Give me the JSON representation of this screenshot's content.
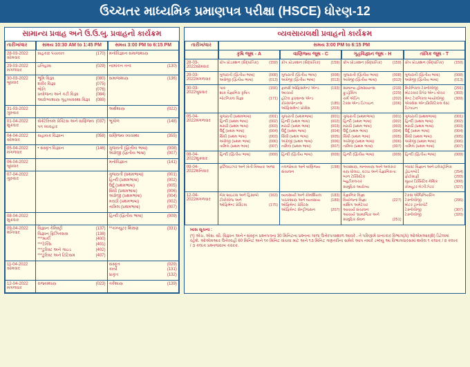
{
  "header": "ઉચ્ચતર માધ્યમિક પ્રમાણપત્ર પરીક્ષા (HSCE) ધોરણ-12",
  "left": {
    "title": "સામાન્ય પ્રવાહ અને ઉ.ઉ.બુ. પ્રવાહનો કાર્યક્રમ",
    "time1": "સમય 10:30 AM to 1:45 PM",
    "time2": "સમય 3:00 PM to 6:15 PM",
    "dateLabel": "તારીખ/વાર",
    "rows": [
      {
        "date": "28-03-2022",
        "day": "સોમવાર",
        "c1": [
          {
            "s": "સહકાર પંચાયત",
            "c": "(170)"
          }
        ],
        "c2": [
          {
            "s": "મનોવિજ્ઞાન સમાજશાસ્ત્ર",
            "c": ""
          }
        ]
      },
      {
        "date": "29-03-2022",
        "day": "મંગળવાર",
        "c1": [
          {
            "s": "ઇતિહાસ",
            "c": "(029)"
          }
        ],
        "c2": [
          {
            "s": "નામાંકન તત્વ",
            "c": "(130)"
          }
        ]
      },
      {
        "date": "30-03-2022",
        "day": "બુધવાર",
        "c1": [
          {
            "s": "ભૂમિ વિજ્ઞા",
            "c": "(080)"
          },
          {
            "s": "શરીર વિજ્ઞા",
            "c": "(075)"
          },
          {
            "s": "ભૌતિ",
            "c": "(076)"
          },
          {
            "s": "પ્રયોજના અને કટી વિજ્ઞા",
            "c": "(084)"
          },
          {
            "s": "આરોગ્યશાસ્ત્ર ગૃહવ્યવસ્થા વિજ્ઞા",
            "c": "(089)"
          }
        ],
        "c2": [
          {
            "s": "સમાજશાસ્ત્ર",
            "c": "(136)"
          }
        ]
      },
      {
        "date": "31-03-2022",
        "day": "ગુરુવાર",
        "c1": [],
        "c2": [
          {
            "s": "અર્થશાસ્ત્ર",
            "c": "(022)"
          }
        ]
      },
      {
        "date": "01-04-2022",
        "day": "શુક્રવાર",
        "c1": [
          {
            "s": "સેક્રેટેરિયલ પ્રેક્ટિસ અને વાણિજ્ય પત્ર વ્યવહાર",
            "c": "(037)"
          }
        ],
        "c2": [
          {
            "s": "ભૂગોળ",
            "c": "(148)"
          }
        ]
      },
      {
        "date": "04-04-2022",
        "day": "સોમવાર",
        "c1": [
          {
            "s": "સહાયક વિજ્ઞાન",
            "c": "(058)"
          }
        ],
        "c2": [
          {
            "s": "વાણિજ્ય વ્યવસ્થા",
            "c": "(355)"
          }
        ]
      },
      {
        "date": "05-04-2022",
        "day": "મંગળવાર",
        "c1": [
          {
            "s": "• સંસ્કૃત વિજ્ઞાન",
            "c": "(146)"
          }
        ],
        "c2": [
          {
            "s": "ગુજરાતી (દ્વિતીય ભાષા)",
            "c": "(008)"
          },
          {
            "s": "અંગ્રેજી (દ્વિતીય ભાષા)",
            "c": "(007)"
          }
        ]
      },
      {
        "date": "06-04-2022",
        "day": "બુધવાર",
        "c1": [],
        "c2": [
          {
            "s": "મનોવિજ્ઞાન",
            "c": "(141)"
          }
        ]
      },
      {
        "date": "07-04-2022",
        "day": "ગુરુવાર",
        "c1": [],
        "c2": [
          {
            "s": "ગુજરાતી (પ્રથમભાષા)",
            "c": "(001)"
          },
          {
            "s": "હિન્દી (પ્રથમભાષા)",
            "c": "(002)"
          },
          {
            "s": "ઉર્દૂ (પ્રથમભાષા)",
            "c": "(005)"
          },
          {
            "s": "સિંધી (પ્રથમભાષા)",
            "c": "(006)"
          },
          {
            "s": "અંગ્રેજી (પ્રથમભાષા)",
            "c": "(004)"
          },
          {
            "s": "મરાઠી (પ્રથમભાષા)",
            "c": "(002)"
          },
          {
            "s": "તામિલ (પ્રથમભાષા)",
            "c": "(007)"
          }
        ]
      },
      {
        "date": "08-04-2022",
        "day": "શુક્રવાર",
        "c1": [],
        "c2": [
          {
            "s": "હિન્દી (દ્વિતીય ભાષા)",
            "c": "(009)"
          }
        ]
      },
      {
        "date": "09-04-2022",
        "day": "શનિવાર",
        "c1": [
          {
            "s": "વિજ્ઞાન કેમિસ્ટ્રી",
            "c": "(137)"
          },
          {
            "s": "વિજ્ઞાન ફિઝિક્સસ",
            "c": "(138)"
          },
          {
            "s": "***માર્કી",
            "c": "(400)"
          },
          {
            "s": "***ટેક્સિ",
            "c": "(401)"
          },
          {
            "s": "***ટુરિસ્ટ અને ગાઇડ",
            "c": "(402)"
          },
          {
            "s": "***ટુરિસ્ટ અને ટિટિસમ",
            "c": "(407)"
          }
        ],
        "c2": [
          {
            "s": "**કમ્પ્યુટર શિક્ષણ",
            "c": "(331)"
          }
        ]
      },
      {
        "date": "11-04-2022",
        "day": "સોમવાર",
        "c1": [],
        "c2": [
          {
            "s": "સંસ્કૃત",
            "c": "(029)"
          },
          {
            "s": "કાર્યો",
            "c": "(131)"
          },
          {
            "s": "પ્રાકૃત",
            "c": "(132)"
          }
        ]
      },
      {
        "date": "12-04-2022",
        "day": "મંગળવાર",
        "c1": [
          {
            "s": "રાજ્યશાસ્ત્ર",
            "c": "(023)"
          }
        ],
        "c2": [
          {
            "s": "તર્કશાસ્ત્ર",
            "c": "(139)"
          }
        ]
      }
    ]
  },
  "right": {
    "title": "વ્યવસાયલક્ષી પ્રવાહનો કાર્યક્રમ",
    "time": "સમય 3:00 PM to 6:15 PM",
    "dateLabel": "તારીખ/વાર",
    "groups": [
      "કૃષિ જૂથ - A",
      "વાણિજ્ય જૂથ - C",
      "ગૃહવિજ્ઞાન જૂથ - H",
      "તાંત્રિક જૂથ - T"
    ],
    "rows": [
      {
        "date": "28-03-2022",
        "day": "સોમવાર",
        "cols": [
          [
            {
              "s": "ક્રોપ પ્રોડક્શન (સૈદ્ધાંતિક)",
              "c": "(159)"
            }
          ],
          [
            {
              "s": "ક્રોપ પ્રોડક્શન (સૈદ્ધાંતિક)",
              "c": "(159)"
            }
          ],
          [
            {
              "s": "ક્રોપ પ્રોડક્શન (સૈદ્ધાંતિક)",
              "c": "(159)"
            }
          ],
          [
            {
              "s": "ક્રોપ પ્રોડક્શન (સૈદ્ધાંતિક)",
              "c": "(159)"
            }
          ]
        ]
      },
      {
        "date": "29-03-2022",
        "day": "મંગળવાર",
        "cols": [
          [
            {
              "s": "ગુજરાતી (દ્વિતીય ભાષા)",
              "c": "(008)"
            },
            {
              "s": "અંગ્રેજી (દ્વિતીય ભાષા)",
              "c": "(013)"
            }
          ],
          [
            {
              "s": "ગુજરાતી (દ્વિતીય ભાષા)",
              "c": "(008)"
            },
            {
              "s": "અંગ્રેજી (દ્વિતીય ભાષા)",
              "c": "(013)"
            }
          ],
          [
            {
              "s": "ગુજરાતી (દ્વિતીય ભાષા)",
              "c": "(008)"
            },
            {
              "s": "અંગ્રેજી (દ્વિતીય ભાષા)",
              "c": "(013)"
            }
          ],
          [
            {
              "s": "ગુજરાતી (દ્વિતીય ભાષા)",
              "c": "(008)"
            },
            {
              "s": "અંગ્રેજી (દ્વિતીય ભાષા)",
              "c": "(013)"
            }
          ]
        ]
      },
      {
        "date": "30-03-2022",
        "day": "બુધવાર",
        "cols": [
          [
            {
              "s": "પાક",
              "c": "(155)"
            },
            {
              "s": "શાક વૈજ્ઞાનિક કૃષિત",
              "c": ""
            },
            {
              "s": "બોટનિકલ વિજ્ઞા",
              "c": "(171)"
            }
          ],
          [
            {
              "s": "ફામર્સ ઓફિસમેન્ટ એન્ડ આચાર્ય",
              "c": "(193)"
            },
            {
              "s": "હોટેલ ફંકશન્સ એન્ડ",
              "c": ""
            },
            {
              "s": "કોરસપોન્ડન્સ",
              "c": "(185)"
            },
            {
              "s": "ઓફિસમેન્ટ પ્રોસેસ",
              "c": "(203)"
            }
          ],
          [
            {
              "s": "સામાન્ય હોમસાયન્સ",
              "c": "(219)"
            },
            {
              "s": "ફુડડ્રેસિંગ",
              "c": "(229)"
            },
            {
              "s": "ચર્મ એડિંગ",
              "c": "(202)"
            },
            {
              "s": "ટેક્સ એન્ડ ડિઝાઇન",
              "c": "(206)"
            }
          ],
          [
            {
              "s": "મિકેનિકલ ટેક્નોલોજી",
              "c": "(291)"
            },
            {
              "s": "મોટરકાર રિપેર એન્ડ વોચર",
              "c": "(303)"
            },
            {
              "s": "મેન્ટ ટેકનિકલ બાયોલોજી",
              "c": "(309)"
            },
            {
              "s": "એક્સેસ એન્ડક્રિકિટિકલ વેસ્ટ ડિઝાઇન",
              "c": ""
            }
          ]
        ]
      },
      {
        "date": "05-04-2022",
        "day": "મંગળવાર",
        "cols": [
          [
            {
              "s": "ગુજરાતી (પ્રથમભાષા)",
              "c": "(001)"
            },
            {
              "s": "હિન્દી (પ્રથમ ભાષા)",
              "c": "(002)"
            },
            {
              "s": "મરાઠી (પ્રથમ ભાષા)",
              "c": "(003)"
            },
            {
              "s": "ઉર્દૂ (પ્રથમ ભાષા)",
              "c": "(004)"
            },
            {
              "s": "સિંધી (પ્રથમ ભાષા)",
              "c": "(003)"
            },
            {
              "s": "અંગ્રેજી (પ્રથમ ભાષા)",
              "c": "(006)"
            },
            {
              "s": "તામિલ (પ્રથમ ભાષા)",
              "c": "(007)"
            }
          ],
          [
            {
              "s": "ગુજરાતી (પ્રથમભાષા)",
              "c": "(001)"
            },
            {
              "s": "હિન્દી (પ્રથમ ભાષા)",
              "c": "(002)"
            },
            {
              "s": "મરાઠી (પ્રથમ ભાષા)",
              "c": "(003)"
            },
            {
              "s": "ઉર્દૂ (પ્રથમ ભાષા)",
              "c": "(004)"
            },
            {
              "s": "સિંધી (પ્રથમ ભાષા)",
              "c": "(005)"
            },
            {
              "s": "અંગ્રેજી (પ્રથમ ભાષા)",
              "c": "(006)"
            },
            {
              "s": "તામિલ (પ્રથમ ભાષા)",
              "c": "(007)"
            }
          ],
          [
            {
              "s": "ગુજરાતી (પ્રથમભાષા)",
              "c": "(001)"
            },
            {
              "s": "હિન્દી (પ્રથમ ભાષા)",
              "c": "(002)"
            },
            {
              "s": "મરાઠી (પ્રથમ ભાષા)",
              "c": "(003)"
            },
            {
              "s": "ઉર્દૂ (પ્રથમ ભાષા)",
              "c": "(004)"
            },
            {
              "s": "સિંધી (પ્રથમ ભાષા)",
              "c": "(005)"
            },
            {
              "s": "અંગ્રેજી (પ્રથમ ભાષા)",
              "c": "(006)"
            },
            {
              "s": "તામિલ (પ્રથમ ભાષા)",
              "c": "(007)"
            }
          ],
          [
            {
              "s": "ગુજરાતી (પ્રથમભાષા)",
              "c": "(001)"
            },
            {
              "s": "હિન્દી (પ્રથમ ભાષા)",
              "c": "(002)"
            },
            {
              "s": "મરાઠી (પ્રથમ ભાષા)",
              "c": "(003)"
            },
            {
              "s": "ઉર્દૂ (પ્રથમ ભાષા)",
              "c": "(004)"
            },
            {
              "s": "સિંધી (પ્રથમ ભાષા)",
              "c": "(005)"
            },
            {
              "s": "અંગ્રેજી (પ્રથમ ભાષા)",
              "c": "(006)"
            },
            {
              "s": "તામિલ (પ્રથમ ભાષા)",
              "c": "(007)"
            }
          ]
        ]
      },
      {
        "date": "08-04-2022",
        "day": "શુક્રવાર",
        "cols": [
          [
            {
              "s": "હિન્દી (દ્વિતીય ભાષા)",
              "c": "(009)"
            }
          ],
          [
            {
              "s": "હિન્દી (દ્વિતીય ભાષા)",
              "c": "(009)"
            }
          ],
          [
            {
              "s": "હિન્દી (દ્વિતીય ભાષા)",
              "c": "(009)"
            }
          ],
          [
            {
              "s": "હિન્દી (દ્વિતીય ભાષા)",
              "c": "(009)"
            }
          ]
        ]
      },
      {
        "date": "09-04-2022",
        "day": "શનિવાર",
        "cols": [
          [
            {
              "s": "ફર્ટિલાઇઝર અને ખેતી વિષયક અજા",
              "c": ""
            }
          ],
          [
            {
              "s": "તલજોવાક અને વાણિજ્ય સંચાલન",
              "c": "(198)"
            }
          ],
          [
            {
              "s": "અગ્રશાસ્ત્ર, માનવવસ્ત્ર અને અલંકાર",
              "c": ""
            },
            {
              "s": "વસ્ત્ર ધોલાઇ, કટાઇ અને વૈજ્ઞાનિકતા:",
              "c": ""
            },
            {
              "s": "બાળ ટેક્સિટિક",
              "c": ""
            },
            {
              "s": "બ્યુટીકલચર",
              "c": ""
            },
            {
              "s": "સામુદ્રિક આરોગ્ય",
              "c": ""
            }
          ],
          [
            {
              "s": "પ્લાસ્ટ વિજ્ઞાન અને ઇલેક્ટ્રોનિક",
              "c": ""
            },
            {
              "s": "ડ્રોઇંગબોર્ડ",
              "c": "(254)"
            },
            {
              "s": "ફોટોગ્રાફી",
              "c": "(293)"
            },
            {
              "s": "સૂયર ડિસ્પ્રિટેિવ મેથિક",
              "c": "(300)"
            },
            {
              "s": "કોમ્યૂટર બેઝીઝેટર",
              "c": "(327)"
            }
          ]
        ]
      },
      {
        "date": "12-04-2022",
        "day": "મંગળવાર",
        "cols": [
          [
            {
              "s": "બેક બ્રાઇટસ અને હિસાબો",
              "c": "(163)"
            },
            {
              "s": "ટીકોલોજ અને",
              "c": ""
            },
            {
              "s": "ઓફિમેન્ટ પ્રેક્ટિસ",
              "c": "(175)"
            }
          ],
          [
            {
              "s": "વ્યવસાયી અને કોમર્શિયલ",
              "c": "(183)"
            },
            {
              "s": "પાઠકશાસ્ત્ર અને વ્યવસાય ઓફિમેન્ટ પ્રેક્ટિસ",
              "c": "(189)"
            },
            {
              "s": "ઓફિમેન્ટ સેન્ટ્રીજસન",
              "c": "(207)"
            }
          ],
          [
            {
              "s": "વૈજ્ઞાનિક વિજ્ઞા",
              "c": ""
            },
            {
              "s": "વિયોજના વિજ્ઞા",
              "c": "(227)"
            },
            {
              "s": "વાશિંગ અમેટેચર",
              "c": ""
            },
            {
              "s": "આચાર્ય સંચાલન",
              "c": ""
            },
            {
              "s": "આચાર્ય 'સામાજિક અને",
              "c": ""
            },
            {
              "s": "સામુદ્રિક સેવન",
              "c": "(251)"
            }
          ],
          [
            {
              "s": "ટેકસ એંજિનિયરિંગ",
              "c": ""
            },
            {
              "s": "ટેક્નોલોજી",
              "c": "(295)"
            },
            {
              "s": "મોટર ટ્રાન્સપોર્ટ",
              "c": ""
            },
            {
              "s": "ટેક્નોલોજી",
              "c": "(307)"
            },
            {
              "s": "ટેક્નોલોજી",
              "c": "(320)"
            }
          ]
        ]
      }
    ]
  },
  "note": {
    "title": "ખાસ સૂચના :",
    "text": "(૧) એચ. એસ. સી. વિજ્ઞાન અને • સંસ્કૃત પ્રશ્નપત્રના 30 મિનિટના પ્રશ્નના ગાળા ઉત્તેરપત્રસ્થાળ આવરે . તે પરિણામે પ્રત્યકાર વિભાગ(A) ઓએમઆર(B) ડિટેલમાં રહેશે. ઓએમઆર ઉત્તેરવહી 60 મિનિટ અને ૧૦ મિનિટ વાંચવા માટે અને ૧૩ મિનિટ ગણતરીના સમેયે આપ તમારે ડબ્લ્યુ આ વિભાગવારસમાં થયેલ ૧ કલાક / ૨ કલાક / ૩ કલાક પ્રશ્નજવાબ કવરક."
  },
  "colors": {
    "headerBg": "#1e5a8e",
    "panelBg": "#fffce8",
    "text": "#b8324a",
    "border": "#1e5a8e"
  }
}
